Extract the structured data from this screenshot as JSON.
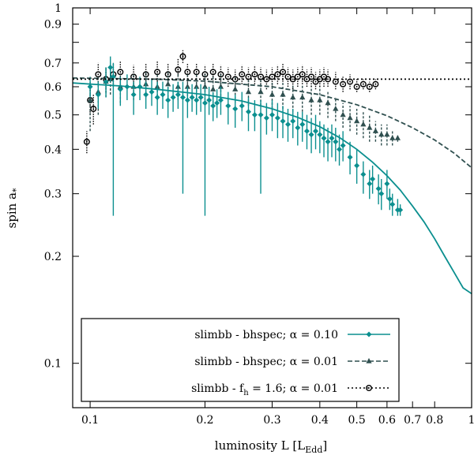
{
  "chart_data": {
    "type": "scatter",
    "title": "",
    "xlabel": "luminosity L [L",
    "xlabel_sub": "Edd",
    "xlabel_close": "]",
    "ylabel": "spin a",
    "ylabel_sub": "*",
    "xscale": "log",
    "yscale": "log",
    "xlim": [
      0.09,
      1.0
    ],
    "ylim": [
      0.075,
      1.0
    ],
    "x_ticks": [
      0.1,
      0.2,
      0.3,
      0.4,
      0.5,
      0.6,
      0.7,
      0.8,
      1
    ],
    "x_tick_labels": [
      "0.1",
      "0.2",
      "0.3",
      "0.4",
      "0.5",
      "0.6",
      "0.7",
      "0.8",
      "1"
    ],
    "y_ticks": [
      0.1,
      0.2,
      0.3,
      0.4,
      0.5,
      0.6,
      0.7,
      0.9,
      1
    ],
    "y_tick_labels": [
      "0.1",
      "0.2",
      "0.3",
      "0.4",
      "0.5",
      "0.6",
      "0.7",
      "0.9",
      "1"
    ],
    "grid": false,
    "legend_position": "bottom-left",
    "series": [
      {
        "name": "slimbb - bhspec;  α = 0.10",
        "legend_main": "slimbb - bhspec;",
        "legend_sub": "",
        "legend_tail": "  α = 0.10",
        "color": "#0b8f8f",
        "marker": "diamond",
        "line_style": "solid",
        "fit_curve": [
          [
            0.09,
            0.615
          ],
          [
            0.12,
            0.603
          ],
          [
            0.15,
            0.59
          ],
          [
            0.2,
            0.57
          ],
          [
            0.25,
            0.547
          ],
          [
            0.3,
            0.52
          ],
          [
            0.35,
            0.492
          ],
          [
            0.4,
            0.463
          ],
          [
            0.45,
            0.432
          ],
          [
            0.5,
            0.4
          ],
          [
            0.55,
            0.368
          ],
          [
            0.6,
            0.337
          ],
          [
            0.65,
            0.307
          ],
          [
            0.7,
            0.277
          ],
          [
            0.75,
            0.25
          ],
          [
            0.8,
            0.224
          ],
          [
            0.85,
            0.2
          ],
          [
            0.9,
            0.18
          ],
          [
            0.95,
            0.163
          ],
          [
            1.0,
            0.157
          ]
        ],
        "points": [
          [
            0.1,
            0.6,
            0.56,
            0.64
          ],
          [
            0.105,
            0.57,
            0.52,
            0.62
          ],
          [
            0.11,
            0.62,
            0.56,
            0.68
          ],
          [
            0.113,
            0.68,
            0.62,
            0.73
          ],
          [
            0.115,
            0.64,
            0.26,
            0.7
          ],
          [
            0.12,
            0.59,
            0.53,
            0.64
          ],
          [
            0.125,
            0.6,
            0.55,
            0.65
          ],
          [
            0.13,
            0.57,
            0.5,
            0.62
          ],
          [
            0.135,
            0.6,
            0.55,
            0.64
          ],
          [
            0.14,
            0.57,
            0.52,
            0.62
          ],
          [
            0.145,
            0.58,
            0.53,
            0.63
          ],
          [
            0.15,
            0.56,
            0.5,
            0.62
          ],
          [
            0.155,
            0.57,
            0.52,
            0.62
          ],
          [
            0.16,
            0.55,
            0.49,
            0.6
          ],
          [
            0.165,
            0.56,
            0.51,
            0.61
          ],
          [
            0.17,
            0.57,
            0.52,
            0.62
          ],
          [
            0.175,
            0.56,
            0.3,
            0.62
          ],
          [
            0.18,
            0.55,
            0.49,
            0.6
          ],
          [
            0.185,
            0.56,
            0.51,
            0.61
          ],
          [
            0.19,
            0.55,
            0.5,
            0.6
          ],
          [
            0.195,
            0.56,
            0.51,
            0.61
          ],
          [
            0.2,
            0.54,
            0.26,
            0.6
          ],
          [
            0.205,
            0.55,
            0.5,
            0.6
          ],
          [
            0.21,
            0.53,
            0.48,
            0.58
          ],
          [
            0.215,
            0.54,
            0.49,
            0.59
          ],
          [
            0.22,
            0.55,
            0.5,
            0.6
          ],
          [
            0.23,
            0.53,
            0.47,
            0.58
          ],
          [
            0.24,
            0.52,
            0.46,
            0.57
          ],
          [
            0.25,
            0.53,
            0.48,
            0.58
          ],
          [
            0.26,
            0.51,
            0.45,
            0.56
          ],
          [
            0.27,
            0.5,
            0.45,
            0.55
          ],
          [
            0.28,
            0.5,
            0.3,
            0.55
          ],
          [
            0.29,
            0.49,
            0.44,
            0.54
          ],
          [
            0.3,
            0.5,
            0.45,
            0.55
          ],
          [
            0.31,
            0.49,
            0.43,
            0.54
          ],
          [
            0.32,
            0.48,
            0.43,
            0.53
          ],
          [
            0.33,
            0.47,
            0.42,
            0.52
          ],
          [
            0.34,
            0.48,
            0.43,
            0.52
          ],
          [
            0.35,
            0.46,
            0.41,
            0.51
          ],
          [
            0.36,
            0.47,
            0.42,
            0.51
          ],
          [
            0.37,
            0.45,
            0.4,
            0.5
          ],
          [
            0.38,
            0.44,
            0.39,
            0.49
          ],
          [
            0.39,
            0.45,
            0.4,
            0.5
          ],
          [
            0.4,
            0.44,
            0.39,
            0.48
          ],
          [
            0.41,
            0.43,
            0.38,
            0.47
          ],
          [
            0.42,
            0.42,
            0.37,
            0.46
          ],
          [
            0.43,
            0.43,
            0.38,
            0.47
          ],
          [
            0.44,
            0.42,
            0.37,
            0.46
          ],
          [
            0.45,
            0.4,
            0.36,
            0.44
          ],
          [
            0.46,
            0.41,
            0.37,
            0.45
          ],
          [
            0.48,
            0.38,
            0.34,
            0.42
          ],
          [
            0.5,
            0.36,
            0.32,
            0.4
          ],
          [
            0.52,
            0.34,
            0.3,
            0.37
          ],
          [
            0.54,
            0.32,
            0.29,
            0.35
          ],
          [
            0.55,
            0.33,
            0.3,
            0.36
          ],
          [
            0.57,
            0.31,
            0.28,
            0.34
          ],
          [
            0.58,
            0.3,
            0.27,
            0.33
          ],
          [
            0.6,
            0.32,
            0.29,
            0.35
          ],
          [
            0.61,
            0.29,
            0.27,
            0.31
          ],
          [
            0.62,
            0.28,
            0.26,
            0.3
          ],
          [
            0.64,
            0.27,
            0.26,
            0.29
          ],
          [
            0.65,
            0.27,
            0.26,
            0.28
          ]
        ]
      },
      {
        "name": "slimbb - bhspec;  α = 0.01",
        "legend_main": "slimbb - bhspec;",
        "legend_sub": "",
        "legend_tail": "  α = 0.01",
        "color": "#2f4f4f",
        "marker": "triangle",
        "line_style": "dashed",
        "fit_curve": [
          [
            0.09,
            0.635
          ],
          [
            0.15,
            0.63
          ],
          [
            0.2,
            0.622
          ],
          [
            0.3,
            0.6
          ],
          [
            0.4,
            0.57
          ],
          [
            0.5,
            0.534
          ],
          [
            0.6,
            0.497
          ],
          [
            0.7,
            0.46
          ],
          [
            0.8,
            0.425
          ],
          [
            0.9,
            0.39
          ],
          [
            1.0,
            0.355
          ]
        ],
        "points": [
          [
            0.1,
            0.55,
            0.45,
            0.62
          ],
          [
            0.105,
            0.58,
            0.5,
            0.64
          ],
          [
            0.11,
            0.62,
            0.56,
            0.68
          ],
          [
            0.113,
            0.63,
            0.57,
            0.69
          ],
          [
            0.12,
            0.6,
            0.54,
            0.65
          ],
          [
            0.13,
            0.6,
            0.55,
            0.65
          ],
          [
            0.14,
            0.61,
            0.56,
            0.66
          ],
          [
            0.15,
            0.6,
            0.55,
            0.65
          ],
          [
            0.16,
            0.61,
            0.56,
            0.66
          ],
          [
            0.17,
            0.6,
            0.55,
            0.65
          ],
          [
            0.18,
            0.6,
            0.55,
            0.65
          ],
          [
            0.19,
            0.6,
            0.55,
            0.65
          ],
          [
            0.2,
            0.6,
            0.55,
            0.65
          ],
          [
            0.21,
            0.59,
            0.54,
            0.64
          ],
          [
            0.22,
            0.6,
            0.55,
            0.65
          ],
          [
            0.24,
            0.59,
            0.54,
            0.64
          ],
          [
            0.26,
            0.58,
            0.53,
            0.63
          ],
          [
            0.28,
            0.58,
            0.53,
            0.63
          ],
          [
            0.3,
            0.57,
            0.52,
            0.62
          ],
          [
            0.32,
            0.57,
            0.52,
            0.62
          ],
          [
            0.34,
            0.56,
            0.51,
            0.61
          ],
          [
            0.36,
            0.56,
            0.51,
            0.61
          ],
          [
            0.38,
            0.55,
            0.5,
            0.6
          ],
          [
            0.4,
            0.55,
            0.5,
            0.6
          ],
          [
            0.42,
            0.54,
            0.49,
            0.58
          ],
          [
            0.44,
            0.52,
            0.48,
            0.56
          ],
          [
            0.46,
            0.5,
            0.46,
            0.54
          ],
          [
            0.48,
            0.49,
            0.45,
            0.53
          ],
          [
            0.5,
            0.48,
            0.44,
            0.52
          ],
          [
            0.52,
            0.47,
            0.43,
            0.51
          ],
          [
            0.54,
            0.46,
            0.42,
            0.5
          ],
          [
            0.56,
            0.45,
            0.42,
            0.48
          ],
          [
            0.58,
            0.44,
            0.41,
            0.47
          ],
          [
            0.6,
            0.44,
            0.41,
            0.47
          ],
          [
            0.62,
            0.43,
            0.41,
            0.45
          ],
          [
            0.64,
            0.43,
            0.42,
            0.44
          ]
        ]
      },
      {
        "name": "slimbb - fh = 1.6; α = 0.01",
        "legend_main": "slimbb - f",
        "legend_sub": "h",
        "legend_tail": " = 1.6; α = 0.01",
        "color": "#000000",
        "marker": "circle",
        "line_style": "dotted",
        "fit_curve": [
          [
            0.09,
            0.63
          ],
          [
            1.0,
            0.63
          ]
        ],
        "points": [
          [
            0.098,
            0.42,
            0.39,
            0.45
          ],
          [
            0.1,
            0.55,
            0.5,
            0.6
          ],
          [
            0.102,
            0.52,
            0.47,
            0.57
          ],
          [
            0.105,
            0.65,
            0.6,
            0.7
          ],
          [
            0.11,
            0.63,
            0.58,
            0.68
          ],
          [
            0.115,
            0.65,
            0.6,
            0.7
          ],
          [
            0.12,
            0.66,
            0.61,
            0.71
          ],
          [
            0.13,
            0.64,
            0.6,
            0.69
          ],
          [
            0.14,
            0.65,
            0.61,
            0.7
          ],
          [
            0.15,
            0.66,
            0.62,
            0.71
          ],
          [
            0.16,
            0.65,
            0.61,
            0.7
          ],
          [
            0.17,
            0.67,
            0.63,
            0.72
          ],
          [
            0.175,
            0.73,
            0.7,
            0.76
          ],
          [
            0.18,
            0.66,
            0.62,
            0.7
          ],
          [
            0.19,
            0.66,
            0.62,
            0.7
          ],
          [
            0.2,
            0.65,
            0.61,
            0.69
          ],
          [
            0.21,
            0.66,
            0.62,
            0.7
          ],
          [
            0.22,
            0.65,
            0.61,
            0.69
          ],
          [
            0.23,
            0.64,
            0.6,
            0.68
          ],
          [
            0.24,
            0.63,
            0.59,
            0.67
          ],
          [
            0.25,
            0.65,
            0.61,
            0.69
          ],
          [
            0.26,
            0.64,
            0.6,
            0.68
          ],
          [
            0.27,
            0.65,
            0.61,
            0.69
          ],
          [
            0.28,
            0.64,
            0.6,
            0.68
          ],
          [
            0.29,
            0.63,
            0.59,
            0.67
          ],
          [
            0.3,
            0.64,
            0.6,
            0.68
          ],
          [
            0.31,
            0.65,
            0.61,
            0.69
          ],
          [
            0.32,
            0.66,
            0.62,
            0.7
          ],
          [
            0.33,
            0.64,
            0.6,
            0.68
          ],
          [
            0.34,
            0.63,
            0.59,
            0.67
          ],
          [
            0.35,
            0.64,
            0.6,
            0.68
          ],
          [
            0.36,
            0.65,
            0.61,
            0.69
          ],
          [
            0.37,
            0.63,
            0.6,
            0.67
          ],
          [
            0.38,
            0.64,
            0.6,
            0.68
          ],
          [
            0.39,
            0.62,
            0.59,
            0.66
          ],
          [
            0.4,
            0.63,
            0.6,
            0.67
          ],
          [
            0.41,
            0.64,
            0.6,
            0.68
          ],
          [
            0.42,
            0.63,
            0.6,
            0.67
          ],
          [
            0.44,
            0.62,
            0.59,
            0.66
          ],
          [
            0.46,
            0.61,
            0.58,
            0.64
          ],
          [
            0.48,
            0.62,
            0.59,
            0.65
          ],
          [
            0.5,
            0.6,
            0.58,
            0.63
          ],
          [
            0.52,
            0.61,
            0.59,
            0.63
          ],
          [
            0.54,
            0.6,
            0.58,
            0.62
          ],
          [
            0.56,
            0.61,
            0.59,
            0.63
          ]
        ]
      }
    ]
  }
}
